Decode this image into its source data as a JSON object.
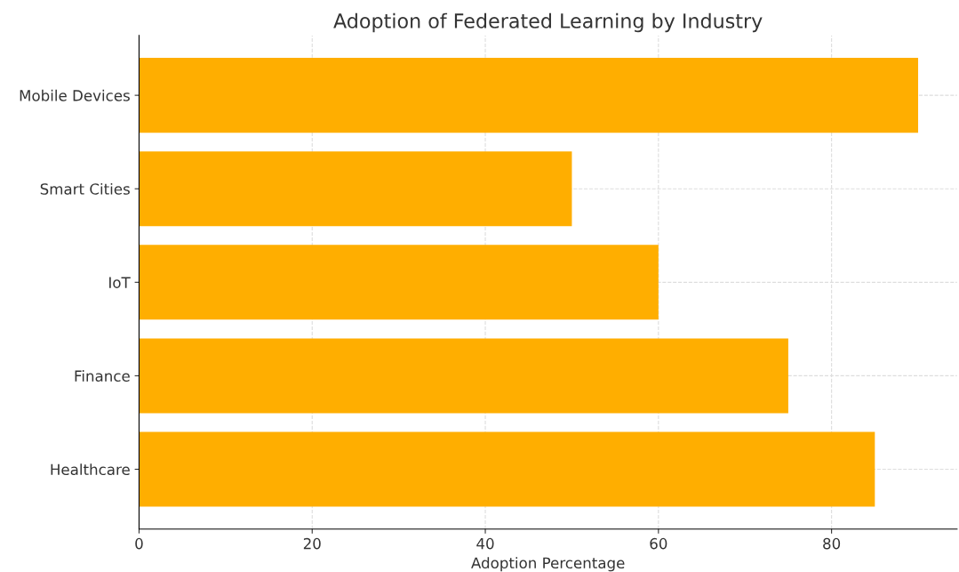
{
  "chart_data": {
    "type": "bar",
    "orientation": "horizontal",
    "title": "Adoption of Federated Learning by Industry",
    "xlabel": "Adoption Percentage",
    "categories": [
      "Mobile Devices",
      "Smart Cities",
      "IoT",
      "Finance",
      "Healthcare"
    ],
    "values": [
      90,
      50,
      60,
      75,
      85
    ],
    "color": "#ffae00",
    "xlim": [
      0,
      94.5
    ],
    "xticks": [
      0,
      20,
      40,
      60,
      80
    ],
    "grid": true
  }
}
